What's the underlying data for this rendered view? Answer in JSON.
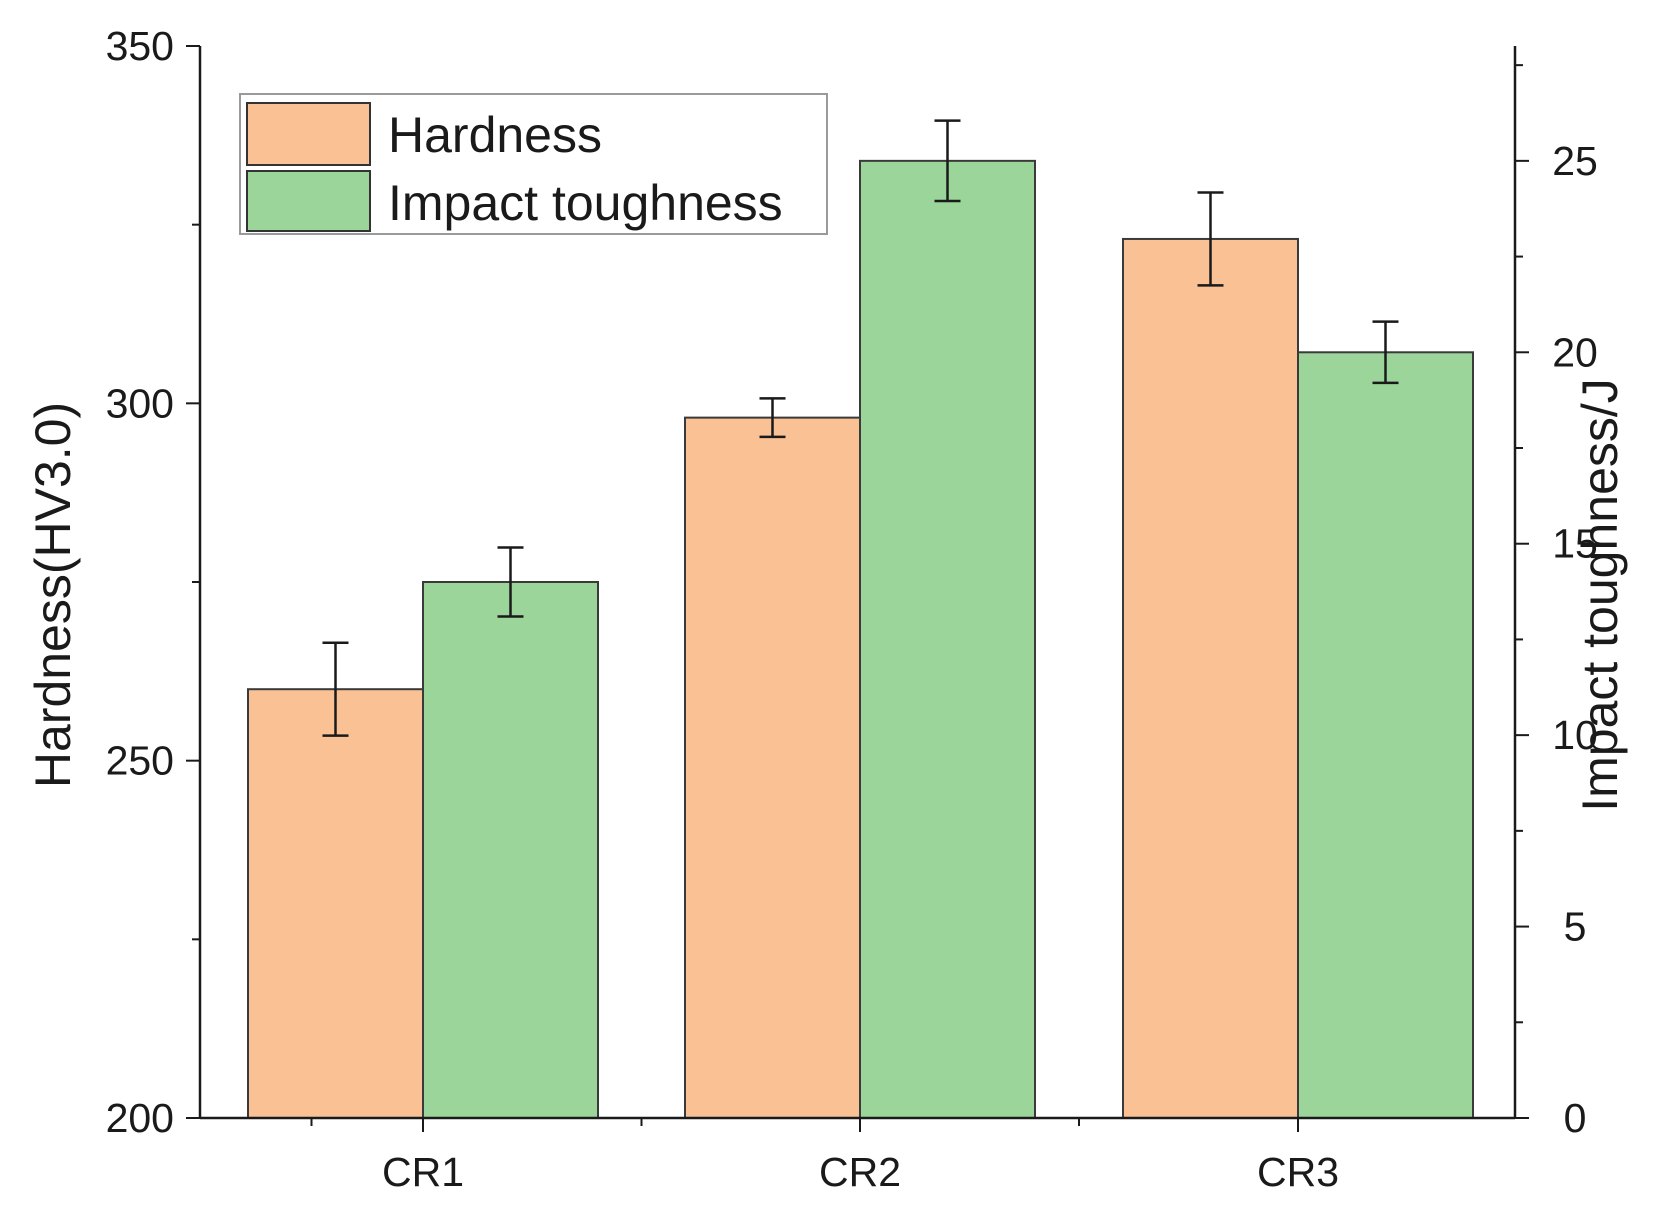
{
  "chart_data": {
    "type": "bar",
    "categories": [
      "CR1",
      "CR2",
      "CR3"
    ],
    "series": [
      {
        "name": "Hardness",
        "axis": "left",
        "color": "#F9C194",
        "values": [
          260,
          298,
          323
        ],
        "errors": [
          6.5,
          2.7,
          6.5
        ]
      },
      {
        "name": "Impact toughness",
        "axis": "right",
        "color": "#9BD59A",
        "values": [
          14.0,
          25.0,
          20.0
        ],
        "errors": [
          0.9,
          1.05,
          0.8
        ]
      }
    ],
    "y_left": {
      "label": "Hardness(HV3.0)",
      "min": 200,
      "max": 350,
      "major_ticks": [
        200,
        250,
        300,
        350
      ],
      "minor_step": 25
    },
    "y_right": {
      "label": "Impact toughness/J",
      "min": 0,
      "max": 28,
      "major_ticks": [
        0,
        5,
        10,
        15,
        20,
        25
      ],
      "minor_step": 2.5
    },
    "xlabel": "",
    "grid": false,
    "legend": {
      "position": "top-left",
      "entries": [
        "Hardness",
        "Impact toughness"
      ]
    }
  }
}
